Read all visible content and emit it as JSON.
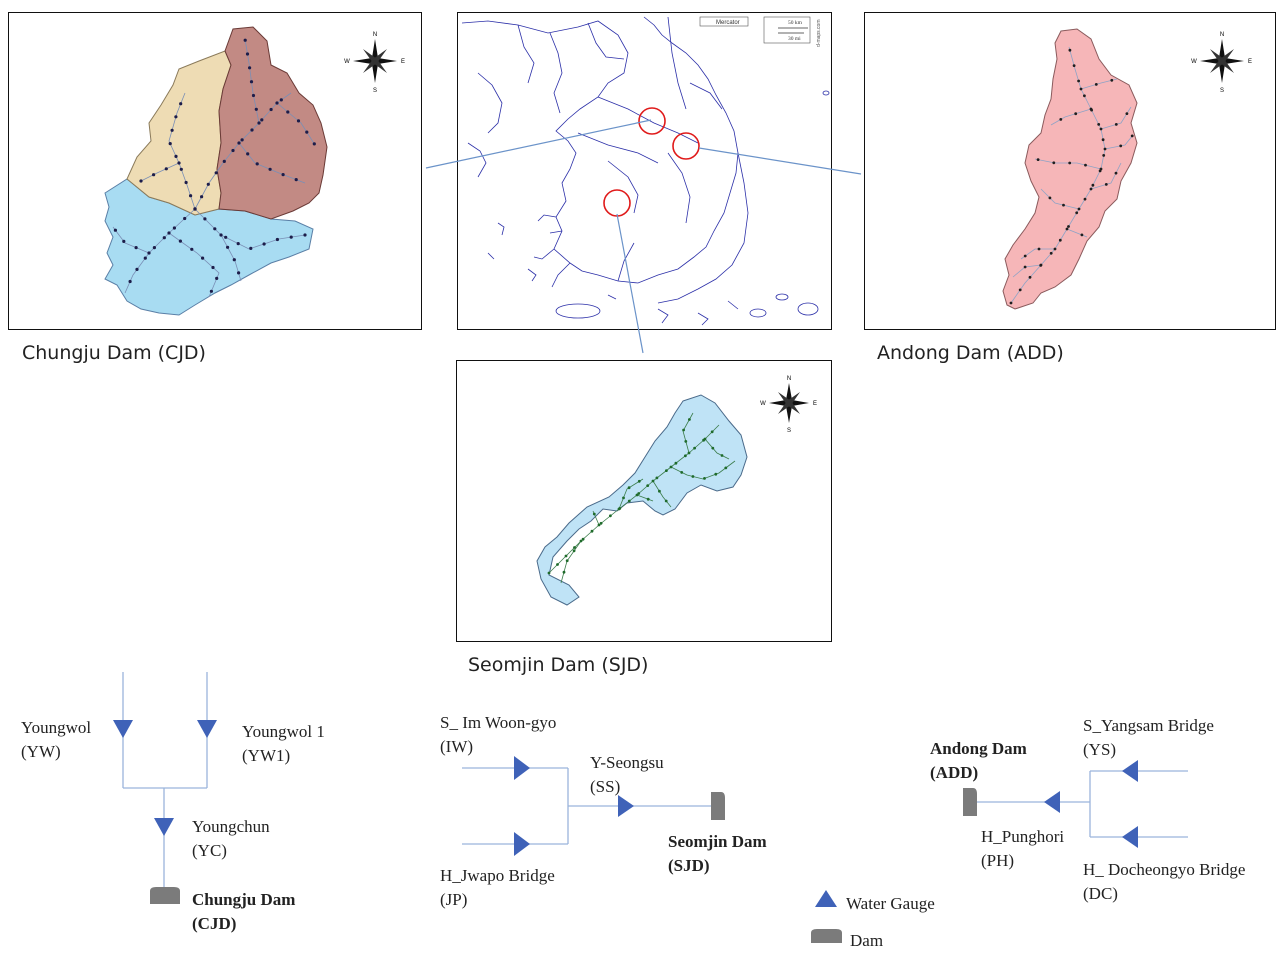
{
  "panels": {
    "cjd": {
      "caption": "Chungju Dam (CJD)",
      "colors": {
        "north_west": "#eedcb4",
        "east": "#c28a84",
        "south": "#a8dcf2",
        "stream": "#7a8fb6",
        "node": "#1d1d4a"
      }
    },
    "center": {
      "projection_label": "Mercator",
      "scale_km": "50 km",
      "scale_mi": "30 mi",
      "credit": "d-maps.com",
      "coast_color": "#2b2fa8",
      "marker_color": "#e01b1b"
    },
    "add": {
      "caption": "Andong Dam (ADD)",
      "colors": {
        "fill": "#f6b6b8",
        "stream": "#8ea3c6",
        "node": "#1f1f1f"
      }
    },
    "sjd": {
      "caption": "Seomjin Dam (SJD)",
      "colors": {
        "fill": "#bfe3f6",
        "stream": "#3a7c4a",
        "node": "#1f6b2b"
      }
    }
  },
  "compass": {
    "n": "N",
    "e": "E",
    "s": "S",
    "w": "W"
  },
  "connector_color": "#6b93c9",
  "schematic": {
    "gauge_color": "#3f62b8",
    "dam_color": "#7b7b7b",
    "line_color": "#9ab4dc",
    "cjd": {
      "yw": {
        "name": "Youngwol",
        "code": "(YW)"
      },
      "yw1": {
        "name": "Youngwol  1",
        "code": "(YW1)"
      },
      "yc": {
        "name": "Youngchun",
        "code": "(YC)"
      },
      "dam": {
        "name": "Chungju Dam",
        "code": "(CJD)"
      }
    },
    "sjd": {
      "iw": {
        "name": "S_  Im Woon-gyo",
        "code": "(IW)"
      },
      "ss": {
        "name": "Y-Seongsu",
        "code": "(SS)"
      },
      "jp": {
        "name": "H_Jwapo  Bridge",
        "code": "(JP)"
      },
      "dam": {
        "name": "Seomjin Dam",
        "code": "(SJD)"
      }
    },
    "add": {
      "dam": {
        "name": "Andong Dam",
        "code": "(ADD)"
      },
      "ys": {
        "name": "S_Yangsam  Bridge",
        "code": "(YS)"
      },
      "ph": {
        "name": "H_Punghori",
        "code": "(PH)"
      },
      "dc": {
        "name": "H_  Docheongyo Bridge",
        "code": "(DC)"
      }
    }
  },
  "legend": {
    "gauge_label": "Water Gauge",
    "dam_label": "Dam"
  }
}
